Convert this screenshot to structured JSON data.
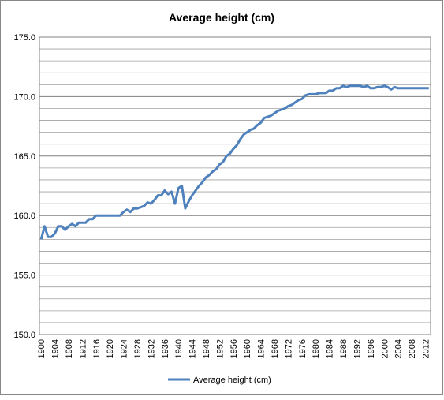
{
  "chart_data": {
    "type": "line",
    "title": "Average height (cm)",
    "categories": [
      "1900",
      null,
      null,
      null,
      "1904",
      null,
      null,
      null,
      "1908",
      null,
      null,
      null,
      "1912",
      null,
      null,
      null,
      "1916",
      null,
      null,
      null,
      "1920",
      null,
      null,
      null,
      "1924",
      null,
      null,
      null,
      "1928",
      null,
      null,
      null,
      "1932",
      null,
      null,
      null,
      "1936",
      null,
      null,
      null,
      "1940",
      null,
      null,
      null,
      "1944",
      null,
      null,
      null,
      "1948",
      null,
      null,
      null,
      "1952",
      null,
      null,
      null,
      "1956",
      null,
      null,
      null,
      "1960",
      null,
      null,
      null,
      "1964",
      null,
      null,
      null,
      "1968",
      null,
      null,
      null,
      "1972",
      null,
      null,
      null,
      "1976",
      null,
      null,
      null,
      "1980",
      null,
      null,
      null,
      "1984",
      null,
      null,
      null,
      "1988",
      null,
      null,
      null,
      "1992",
      null,
      null,
      null,
      "1996",
      null,
      null,
      null,
      "2000",
      null,
      null,
      null,
      "2004",
      null,
      null,
      null,
      "2008",
      null,
      null,
      null,
      "2012",
      null
    ],
    "series": [
      {
        "name": "Average height (cm)",
        "color": "#4f81bd",
        "values": [
          158.0,
          159.1,
          158.2,
          158.2,
          158.5,
          159.1,
          159.1,
          158.8,
          159.1,
          159.3,
          159.1,
          159.4,
          159.4,
          159.4,
          159.7,
          159.7,
          160.0,
          160.0,
          160.0,
          160.0,
          160.0,
          160.0,
          160.0,
          160.0,
          160.3,
          160.5,
          160.3,
          160.6,
          160.6,
          160.7,
          160.8,
          161.1,
          161.0,
          161.3,
          161.7,
          161.7,
          162.1,
          161.8,
          162.0,
          161.0,
          162.3,
          162.5,
          160.6,
          161.2,
          161.7,
          162.1,
          162.5,
          162.8,
          163.2,
          163.4,
          163.7,
          163.9,
          164.3,
          164.5,
          165.0,
          165.2,
          165.6,
          165.9,
          166.4,
          166.8,
          167.0,
          167.2,
          167.3,
          167.6,
          167.8,
          168.2,
          168.3,
          168.4,
          168.6,
          168.8,
          168.9,
          169.0,
          169.2,
          169.3,
          169.5,
          169.7,
          169.8,
          170.1,
          170.2,
          170.2,
          170.2,
          170.3,
          170.3,
          170.3,
          170.5,
          170.5,
          170.7,
          170.7,
          170.9,
          170.8,
          170.9,
          170.9,
          170.9,
          170.9,
          170.8,
          170.9,
          170.7,
          170.7,
          170.8,
          170.8,
          170.9,
          170.8,
          170.6,
          170.8,
          170.7,
          170.7,
          170.7,
          170.7,
          170.7,
          170.7,
          170.7,
          170.7,
          170.7,
          170.7
        ]
      }
    ],
    "ylim": [
      150,
      175
    ],
    "yticks": [
      {
        "value": 150,
        "label": "150.0"
      },
      {
        "value": 155,
        "label": "155.0"
      },
      {
        "value": 160,
        "label": "160.0"
      },
      {
        "value": 165,
        "label": "165.0"
      },
      {
        "value": 170,
        "label": "170.0"
      },
      {
        "value": 175,
        "label": "175.0"
      }
    ],
    "y_minor_ticks": [
      151,
      152,
      153,
      154,
      156,
      157,
      158,
      159,
      161,
      162,
      163,
      164,
      166,
      167,
      168,
      169,
      171,
      172,
      173,
      174
    ],
    "grid": true,
    "legend": "bottom"
  }
}
